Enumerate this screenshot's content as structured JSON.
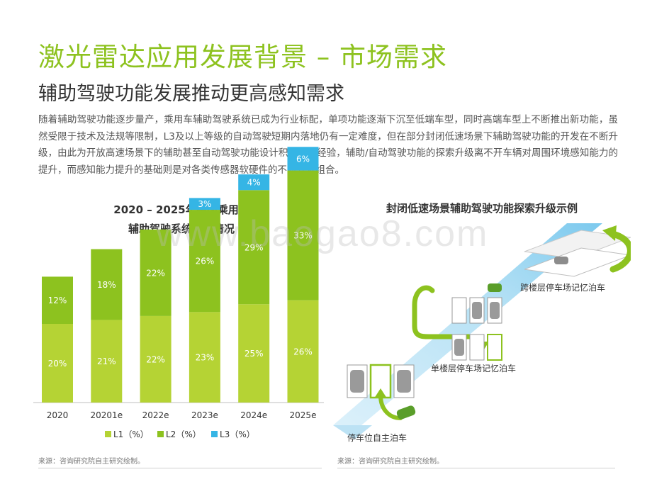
{
  "header": {
    "title": "激光雷达应用发展背景 – 市场需求",
    "subtitle": "辅助驾驶功能发展推动更高感知需求"
  },
  "body": {
    "paragraph": "随着辅助驾驶功能逐步量产，乘用车辅助驾驶系统已成为行业标配，单项功能逐渐下沉至低端车型，同时高端车型上不断推出新功能，虽然受限于技术及法规等限制，L3及以上等级的自动驾驶短期内落地仍有一定难度，但在部分封闭低速场景下辅助驾驶功能的开发在不断升级，由此为开放高速场景下的辅助甚至自动驾驶功能设计积累基础经验，辅助/自动驾驶功能的探索升级离不开车辆对周围环境感知能力的提升，而感知能力提升的基础则是对各类传感器软硬件的不断开发组合。"
  },
  "chart_data": {
    "type": "bar",
    "stacked": true,
    "title": "2020 – 2025年中国乘用车 辅助驾驶系统占比情况",
    "title_lines": [
      "2020 – 2025年中国乘用车",
      "辅助驾驶系统占比情况"
    ],
    "categories": [
      "2020",
      "20201e",
      "2022e",
      "2023e",
      "2024e",
      "2025e"
    ],
    "series": [
      {
        "name": "L1（%）",
        "values": [
          20,
          21,
          22,
          23,
          25,
          26
        ],
        "labels": [
          "20%",
          "21%",
          "22%",
          "23%",
          "25%",
          "26%"
        ]
      },
      {
        "name": "L2（%）",
        "values": [
          12,
          18,
          22,
          26,
          29,
          33
        ],
        "labels": [
          "12%",
          "18%",
          "22%",
          "26%",
          "29%",
          "33%"
        ]
      },
      {
        "name": "L3（%）",
        "values": [
          0,
          0,
          0,
          3,
          4,
          6
        ],
        "labels": [
          "",
          "",
          "",
          "3%",
          "4%",
          "6%"
        ]
      }
    ],
    "colors": [
      "#b5d334",
      "#8dc21f",
      "#35b5e5"
    ],
    "ylim": [
      0,
      65
    ],
    "legend": "bottom",
    "grid": false
  },
  "illustration": {
    "title": "封闭低速场景辅助驾驶功能探索升级示例",
    "labels": {
      "cross_floor": "跨楼层停车场记忆泊车",
      "single_floor": "单楼层停车场记忆泊车",
      "spot_parking": "停车位自主泊车"
    }
  },
  "footer": {
    "source_left": "来源：咨询研究院自主研究绘制。",
    "source_right": "来源：咨询研究院自主研究绘制。"
  },
  "watermark": "www.baogao8.com",
  "colors": {
    "title_green": "#8dc21f",
    "l1": "#b5d334",
    "l2": "#8dc21f",
    "l3": "#35b5e5"
  }
}
